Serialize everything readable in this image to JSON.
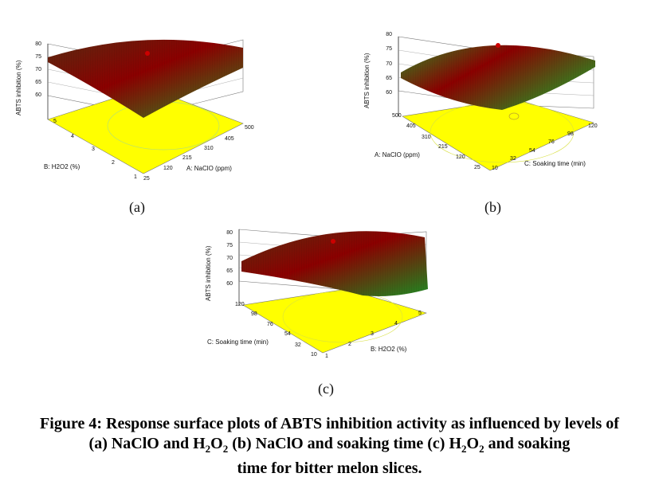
{
  "chart_data": [
    {
      "type": "surface3d",
      "panel": "(a)",
      "zlabel": "ABTS inhibition (%)",
      "zticks": [
        "60",
        "65",
        "70",
        "75",
        "80"
      ],
      "zlim": [
        60,
        80
      ],
      "xlabel": "A: NaClO (ppm)",
      "xticks": [
        "25",
        "120",
        "215",
        "310",
        "405",
        "500"
      ],
      "ylabel": "B: H2O2 (%)",
      "yticks": [
        "1",
        "2",
        "3",
        "4",
        "5"
      ],
      "colors": {
        "floor": "#ffff00",
        "surface_high": "#8b0000",
        "surface_low": "#228b22",
        "center_point": "#cc0000"
      }
    },
    {
      "type": "surface3d",
      "panel": "(b)",
      "zlabel": "ABTS inhibition (%)",
      "zticks": [
        "60",
        "65",
        "70",
        "75",
        "80"
      ],
      "zlim": [
        60,
        80
      ],
      "xlabel": "C: Soaking time (min)",
      "xticks": [
        "10",
        "32",
        "54",
        "76",
        "98",
        "120"
      ],
      "ylabel": "A: NaClO (ppm)",
      "yticks": [
        "25",
        "120",
        "215",
        "310",
        "405",
        "500"
      ],
      "colors": {
        "floor": "#ffff00",
        "surface_high": "#8b0000",
        "surface_low": "#228b22",
        "center_point": "#cc0000"
      }
    },
    {
      "type": "surface3d",
      "panel": "(c)",
      "zlabel": "ABTS inhibition (%)",
      "zticks": [
        "60",
        "65",
        "70",
        "75",
        "80"
      ],
      "zlim": [
        60,
        80
      ],
      "xlabel": "B: H2O2 (%)",
      "xticks": [
        "1",
        "2",
        "3",
        "4",
        "5"
      ],
      "ylabel": "C: Soaking time (min)",
      "yticks": [
        "10",
        "32",
        "54",
        "76",
        "98",
        "120"
      ],
      "colors": {
        "floor": "#ffff00",
        "surface_high": "#8b0000",
        "surface_low": "#228b22",
        "center_point": "#cc0000"
      }
    }
  ],
  "labels": {
    "a": "(a)",
    "b": "(b)",
    "c": "(c)"
  },
  "caption": {
    "line1_prefix": "Figure 4: Response surface plots of ABTS inhibition activity as influenced by levels of",
    "line2_part1": "(a) NaClO and H",
    "sub2a": "2",
    "line2_part2": "O",
    "sub2b": "2",
    "line2_part3": " (b) NaClO and soaking time (c) H",
    "sub2c": "2",
    "line2_part4": "O",
    "sub2d": "2",
    "line2_part5": " and soaking",
    "line3": "time for bitter melon slices."
  }
}
